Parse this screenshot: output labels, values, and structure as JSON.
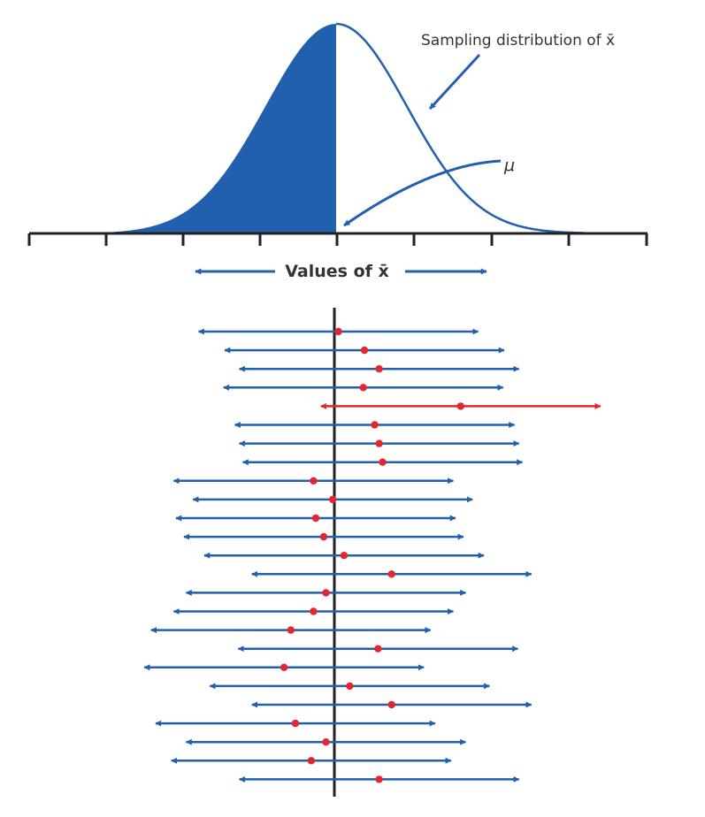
{
  "labels": {
    "curve": "Sampling distribution of x̄",
    "mu": "μ",
    "axis_title": "Values of x̄"
  },
  "colors": {
    "blue": "#2260AD",
    "red": "#E3262F",
    "axis": "#222222",
    "text": "#333333"
  },
  "intervals": [
    {
      "center": 0.02,
      "captures_mu": true
    },
    {
      "center": 0.25,
      "captures_mu": true
    },
    {
      "center": 0.38,
      "captures_mu": true
    },
    {
      "center": 0.24,
      "captures_mu": true
    },
    {
      "center": 1.1,
      "captures_mu": false
    },
    {
      "center": 0.34,
      "captures_mu": true
    },
    {
      "center": 0.38,
      "captures_mu": true
    },
    {
      "center": 0.41,
      "captures_mu": true
    },
    {
      "center": -0.2,
      "captures_mu": true
    },
    {
      "center": -0.03,
      "captures_mu": true
    },
    {
      "center": -0.18,
      "captures_mu": true
    },
    {
      "center": -0.11,
      "captures_mu": true
    },
    {
      "center": 0.07,
      "captures_mu": true
    },
    {
      "center": 0.49,
      "captures_mu": true
    },
    {
      "center": -0.09,
      "captures_mu": true
    },
    {
      "center": -0.2,
      "captures_mu": true
    },
    {
      "center": -0.4,
      "captures_mu": true
    },
    {
      "center": 0.37,
      "captures_mu": true
    },
    {
      "center": -0.46,
      "captures_mu": true
    },
    {
      "center": 0.12,
      "captures_mu": true
    },
    {
      "center": 0.49,
      "captures_mu": true
    },
    {
      "center": -0.36,
      "captures_mu": true
    },
    {
      "center": -0.09,
      "captures_mu": true
    },
    {
      "center": -0.22,
      "captures_mu": true
    },
    {
      "center": 0.38,
      "captures_mu": true
    }
  ]
}
